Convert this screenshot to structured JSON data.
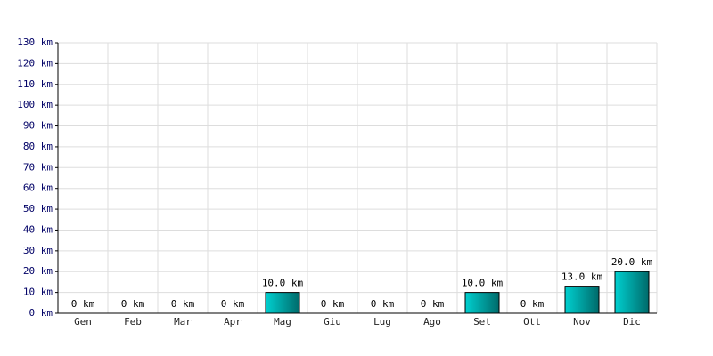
{
  "chart_data": {
    "type": "bar",
    "categories": [
      "Gen",
      "Feb",
      "Mar",
      "Apr",
      "Mag",
      "Giu",
      "Lug",
      "Ago",
      "Set",
      "Ott",
      "Nov",
      "Dic"
    ],
    "values": [
      0,
      0,
      0,
      0,
      10,
      0,
      0,
      0,
      10,
      0,
      13,
      20
    ],
    "value_labels": [
      "0 km",
      "0 km",
      "0 km",
      "0 km",
      "10.0 km",
      "0 km",
      "0 km",
      "0 km",
      "10.0 km",
      "0 km",
      "13.0 km",
      "20.0 km"
    ],
    "color": "#00d0d0",
    "ylim": [
      0,
      130
    ],
    "yticks": [
      {
        "value": 0,
        "label": "0 km"
      },
      {
        "value": 10,
        "label": "10 km"
      },
      {
        "value": 20,
        "label": "20 km"
      },
      {
        "value": 30,
        "label": "30 km"
      },
      {
        "value": 40,
        "label": "40 km"
      },
      {
        "value": 50,
        "label": "50 km"
      },
      {
        "value": 60,
        "label": "60 km"
      },
      {
        "value": 70,
        "label": "70 km"
      },
      {
        "value": 80,
        "label": "80 km"
      },
      {
        "value": 90,
        "label": "90 km"
      },
      {
        "value": 100,
        "label": "100 km"
      },
      {
        "value": 110,
        "label": "110 km"
      },
      {
        "value": 120,
        "label": "120 km"
      },
      {
        "value": 130,
        "label": "130 km"
      }
    ],
    "grid": true
  }
}
